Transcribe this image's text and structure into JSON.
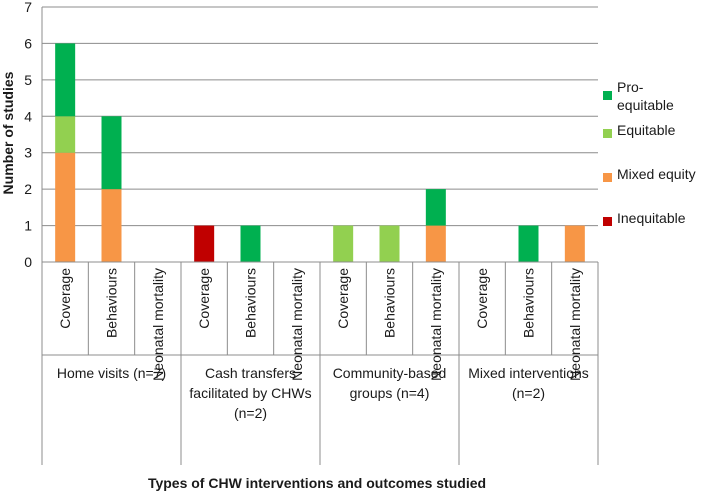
{
  "chart_data": {
    "type": "bar",
    "stacked": true,
    "title": "",
    "xlabel": "Types of CHW interventions and outcomes studied",
    "ylabel": "Number of studies",
    "ylim": [
      0,
      7
    ],
    "yticks": [
      0,
      1,
      2,
      3,
      4,
      5,
      6,
      7
    ],
    "grid": true,
    "legend_position": "right",
    "groups": [
      {
        "label": "Home visits (n=7)",
        "categories": [
          "Coverage",
          "Behaviours",
          "Neonatal mortality"
        ]
      },
      {
        "label": "Cash transfers facilitated by CHWs (n=2)",
        "categories": [
          "Coverage",
          "Behaviours",
          "Neonatal mortality"
        ]
      },
      {
        "label": "Community-based groups (n=4)",
        "categories": [
          "Coverage",
          "Behaviours",
          "Neonatal mortality"
        ]
      },
      {
        "label": "Mixed interventions (n=2)",
        "categories": [
          "Coverage",
          "Behaviours",
          "Neonatal mortality"
        ]
      }
    ],
    "series": [
      {
        "name": "Inequitable",
        "color": "#c00000",
        "values": [
          0,
          0,
          0,
          1,
          0,
          0,
          0,
          0,
          0,
          0,
          0,
          0
        ]
      },
      {
        "name": "Mixed equity",
        "color": "#f79646",
        "values": [
          3,
          2,
          0,
          0,
          0,
          0,
          0,
          0,
          1,
          0,
          0,
          1
        ]
      },
      {
        "name": "Equitable",
        "color": "#92d050",
        "values": [
          1,
          0,
          0,
          0,
          0,
          0,
          1,
          1,
          0,
          0,
          0,
          0
        ]
      },
      {
        "name": "Pro-equitable",
        "color": "#00b050",
        "values": [
          2,
          2,
          0,
          0,
          1,
          0,
          0,
          0,
          1,
          0,
          1,
          0
        ]
      }
    ],
    "legend_order": [
      "Pro-equitable",
      "Equitable",
      "Mixed equity",
      "Inequitable"
    ]
  }
}
